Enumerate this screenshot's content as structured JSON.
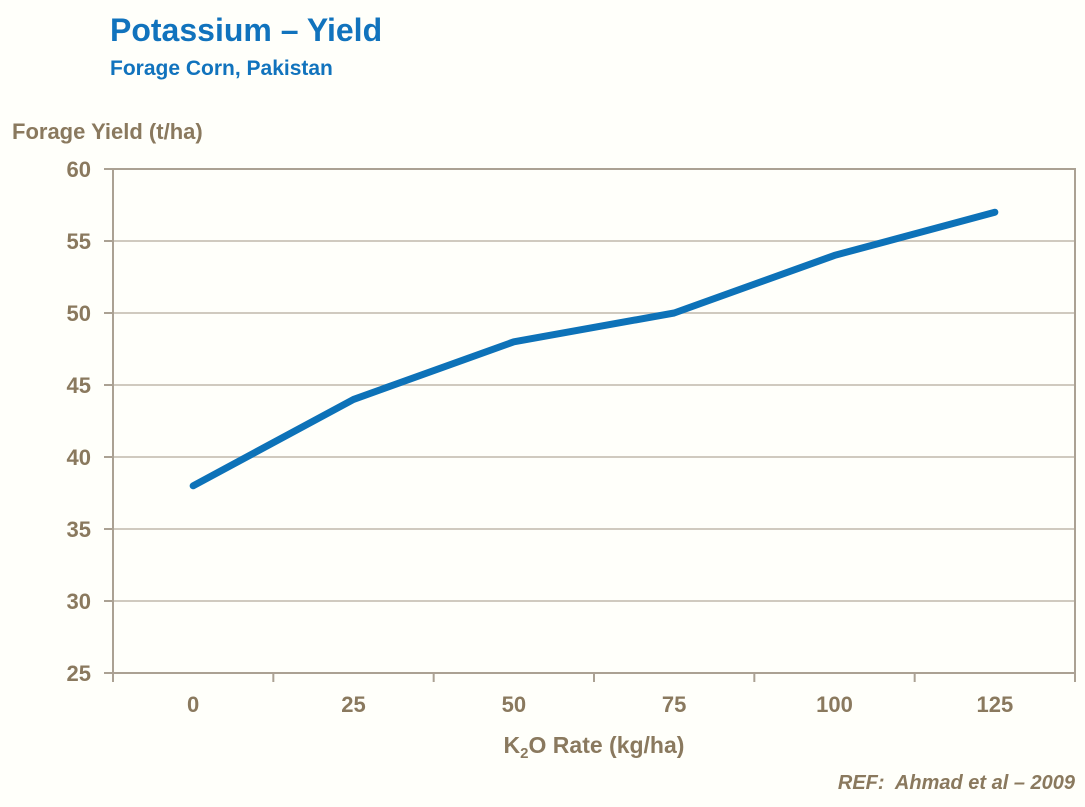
{
  "header": {
    "title": "Potassium – Yield",
    "subtitle": "Forage Corn, Pakistan"
  },
  "ref_note": "REF:  Ahmad et al – 2009",
  "chart_data": {
    "type": "line",
    "title": "Potassium – Yield",
    "subtitle": "Forage Corn, Pakistan",
    "categories": [
      0,
      25,
      50,
      75,
      100,
      125
    ],
    "series": [
      {
        "name": "Forage Yield",
        "values": [
          38,
          44,
          48,
          50,
          54,
          57
        ]
      }
    ],
    "xlabel": "K2O Rate (kg/ha)",
    "xlabel_parts": {
      "base": "K",
      "subscript": "2",
      "rest": "O Rate (kg/ha)"
    },
    "ylabel": "Forage Yield (t/ha)",
    "ylim": [
      25,
      60
    ],
    "ytick_step": 5,
    "yticks": [
      25,
      30,
      35,
      40,
      45,
      50,
      55,
      60
    ],
    "grid": "horizontal",
    "legend": "none"
  },
  "colors": {
    "title_blue": "#1173bd",
    "line_blue": "#0d72b8",
    "axis_text_brown": "#8a795e",
    "axis_line": "#aba193",
    "gridline": "#c0b8ab",
    "background": "#fffffa"
  }
}
